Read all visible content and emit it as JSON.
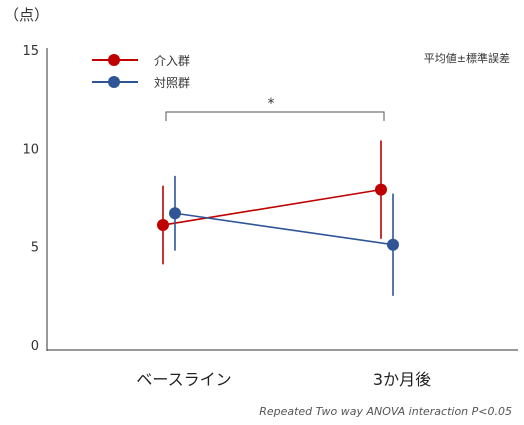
{
  "chart_data": {
    "type": "line",
    "title": "",
    "unit_label": "（点）",
    "note": "平均値±標準誤差",
    "footnote": "Repeated Two way ANOVA interaction P<0.05",
    "significance_mark": "*",
    "categories": [
      "ベースライン",
      "3か月後"
    ],
    "yticks": [
      0,
      5,
      10,
      15
    ],
    "ylim": [
      0,
      15
    ],
    "grid": false,
    "legend_position": "top-left",
    "series": [
      {
        "name": "介入群",
        "color": "#c00000",
        "values": [
          6.1,
          7.9
        ],
        "errors": [
          2.0,
          2.5
        ]
      },
      {
        "name": "対照群",
        "color": "#2f5597",
        "values": [
          6.7,
          5.1
        ],
        "errors": [
          1.9,
          2.6
        ]
      }
    ]
  }
}
